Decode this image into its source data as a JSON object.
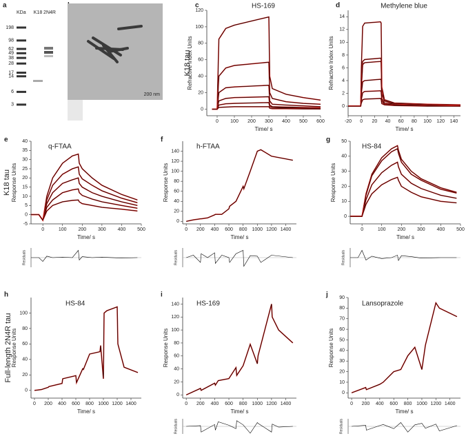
{
  "gel": {
    "panel": "a",
    "header": "KDa",
    "lanes": [
      "K18",
      "2N4R"
    ],
    "markers": [
      198,
      98,
      62,
      49,
      38,
      28,
      17,
      14,
      6,
      3
    ]
  },
  "micrograph": {
    "panel": "b",
    "scale_bar": "200 nm"
  },
  "chart_data": [
    {
      "type": "line",
      "panel": "c",
      "row_label": "K18 tau",
      "title": "HS-169",
      "ylabel": "Refractive Index Units",
      "xlabel": "Time/ s",
      "fit_color": "#e0201b",
      "xlim": [
        -60,
        600
      ],
      "xticks": [
        0,
        100,
        200,
        300,
        400,
        500,
        600
      ],
      "ylim": [
        -8,
        120
      ],
      "yticks": [
        0,
        20,
        40,
        60,
        80,
        100,
        120
      ],
      "x": [
        -30,
        0,
        10,
        50,
        100,
        200,
        300,
        305,
        320,
        400,
        500,
        600
      ],
      "series": [
        {
          "color": "#000000",
          "values": [
            0,
            0,
            85,
            98,
            102,
            107,
            112,
            40,
            25,
            18,
            14,
            11
          ]
        },
        {
          "color": "#000000",
          "values": [
            0,
            0,
            40,
            50,
            53,
            55,
            57,
            20,
            13,
            9,
            7,
            6
          ]
        },
        {
          "color": "#000000",
          "values": [
            0,
            0,
            20,
            26,
            27,
            28,
            29,
            10,
            6,
            5,
            4,
            3
          ]
        },
        {
          "color": "#000000",
          "values": [
            0,
            0,
            10,
            13,
            14,
            14.5,
            15,
            5,
            3,
            2.5,
            2,
            1.5
          ]
        },
        {
          "color": "#000000",
          "values": [
            0,
            0,
            5,
            6.5,
            7,
            7.5,
            8,
            3,
            2,
            1.5,
            1,
            1
          ]
        },
        {
          "color": "#000000",
          "values": [
            0,
            0,
            2,
            2.5,
            3,
            3,
            3,
            1,
            0.5,
            0.5,
            0.3,
            0.2
          ]
        }
      ]
    },
    {
      "type": "line",
      "panel": "d",
      "title": "Methylene blue",
      "ylabel": "Refractive Index Units",
      "xlabel": "Time/ s",
      "fit_color": "#e0201b",
      "xlim": [
        -20,
        150
      ],
      "xticks": [
        -20,
        0,
        20,
        40,
        60,
        80,
        100,
        120,
        140
      ],
      "ylim": [
        -1.5,
        15
      ],
      "yticks": [
        0,
        2,
        4,
        6,
        8,
        10,
        12,
        14
      ],
      "x": [
        -20,
        -1,
        0,
        2,
        5,
        29,
        30,
        31,
        35,
        50,
        100,
        150
      ],
      "series": [
        {
          "color": "#000000",
          "values": [
            0,
            0,
            6,
            12.5,
            13,
            13.2,
            13,
            3,
            1,
            0.5,
            0.3,
            0.2
          ]
        },
        {
          "color": "#000000",
          "values": [
            0,
            0,
            3,
            7,
            7.3,
            7.5,
            7.4,
            2,
            0.8,
            0.4,
            0.2,
            0.1
          ]
        },
        {
          "color": "#000000",
          "values": [
            0,
            0,
            3,
            6.5,
            6.8,
            7,
            6.9,
            2,
            0.8,
            0.4,
            0.2,
            0.1
          ]
        },
        {
          "color": "#000000",
          "values": [
            0,
            0,
            2,
            3.8,
            4,
            4.2,
            4.1,
            1.2,
            0.5,
            0.3,
            0.1,
            0.1
          ]
        },
        {
          "color": "#000000",
          "values": [
            0,
            0,
            1,
            2.1,
            2.3,
            2.4,
            2.3,
            0.8,
            0.3,
            0.2,
            0.1,
            0
          ]
        },
        {
          "color": "#000000",
          "values": [
            0,
            0,
            0.5,
            1,
            1.1,
            1.2,
            1.1,
            0.4,
            0.2,
            0.1,
            0,
            0
          ]
        }
      ]
    },
    {
      "type": "line",
      "panel": "e",
      "row_label": "K18 tau",
      "title": "q-FTAA",
      "ylabel": "Response Units",
      "xlabel": "Time/ s",
      "fit_color": "#e0201b",
      "xlim": [
        -60,
        500
      ],
      "xticks": [
        0,
        100,
        200,
        300,
        400,
        500
      ],
      "ylim": [
        -5,
        40
      ],
      "yticks": [
        -5,
        0,
        5,
        10,
        15,
        20,
        25,
        30,
        35,
        40
      ],
      "x": [
        -60,
        -20,
        0,
        20,
        50,
        100,
        150,
        180,
        185,
        200,
        250,
        300,
        400,
        480
      ],
      "series": [
        {
          "color": "#000000",
          "values": [
            0,
            0,
            -3,
            10,
            20,
            28,
            32,
            33,
            28,
            25,
            20,
            16,
            11,
            8
          ]
        },
        {
          "color": "#000000",
          "values": [
            0,
            0,
            -3,
            8,
            16,
            22,
            25,
            26,
            22,
            19.5,
            16,
            13,
            9,
            6.5
          ]
        },
        {
          "color": "#000000",
          "values": [
            0,
            0,
            -3,
            6,
            12,
            17,
            19,
            20,
            17,
            15,
            12,
            10,
            7,
            5
          ]
        },
        {
          "color": "#000000",
          "values": [
            0,
            0,
            -3,
            4,
            8,
            12,
            13.5,
            14,
            12,
            10.5,
            8.5,
            7,
            5,
            3.5
          ]
        },
        {
          "color": "#000000",
          "values": [
            0,
            0,
            -3,
            2,
            5,
            7,
            7.8,
            8,
            7,
            6,
            5,
            4,
            3,
            2
          ]
        }
      ],
      "residuals": {
        "ylabel": "Residuals",
        "ylim": [
          -2,
          2
        ],
        "values": [
          0,
          0,
          -0.8,
          0.3,
          0,
          0.1,
          0,
          1.5,
          -0.5,
          0.2,
          0,
          0.1,
          -0.1,
          0
        ]
      }
    },
    {
      "type": "line",
      "panel": "f",
      "title": "h-FTAA",
      "ylabel": "Response Units",
      "xlabel": "Time/ s",
      "fit_color": "#e0201b",
      "xlim": [
        -50,
        1550
      ],
      "xticks": [
        0,
        200,
        400,
        600,
        800,
        1000,
        1200,
        1400
      ],
      "ylim": [
        -5,
        160
      ],
      "yticks": [
        0,
        20,
        40,
        60,
        80,
        100,
        120,
        140
      ],
      "x": [
        0,
        100,
        200,
        210,
        300,
        400,
        410,
        500,
        600,
        610,
        700,
        800,
        810,
        900,
        1000,
        1050,
        1200,
        1500
      ],
      "series": [
        {
          "color": "#000000",
          "values": [
            0,
            3,
            5,
            5,
            7,
            13,
            14,
            14,
            25,
            30,
            40,
            70,
            65,
            100,
            140,
            143,
            130,
            122
          ]
        }
      ],
      "residuals": {
        "ylabel": "Residuals",
        "ylim": [
          -2,
          2
        ],
        "values": [
          0,
          0.5,
          -1,
          0.8,
          0,
          1,
          -1.2,
          0.5,
          0,
          -1,
          0.8,
          1.5,
          -1.8,
          0.4,
          0.3,
          -1,
          0.5,
          0
        ]
      }
    },
    {
      "type": "line",
      "panel": "g",
      "title": "HS-84",
      "ylabel": "Response Units",
      "xlabel": "Time/ s",
      "fit_color": "#e0201b",
      "xlim": [
        -60,
        500
      ],
      "xticks": [
        0,
        100,
        200,
        300,
        400,
        500
      ],
      "ylim": [
        -5,
        50
      ],
      "yticks": [
        0,
        10,
        20,
        30,
        40,
        50
      ],
      "x": [
        -60,
        -20,
        0,
        20,
        50,
        100,
        150,
        180,
        185,
        200,
        250,
        300,
        400,
        480
      ],
      "series": [
        {
          "color": "#000000",
          "values": [
            0,
            0,
            0,
            15,
            28,
            39,
            45,
            47,
            44,
            38,
            30,
            25,
            19,
            16
          ]
        },
        {
          "color": "#000000",
          "values": [
            0,
            0,
            0,
            14,
            27,
            37,
            43,
            45,
            42,
            36,
            28,
            24,
            18,
            15.5
          ]
        },
        {
          "color": "#000000",
          "values": [
            0,
            0,
            0,
            11,
            21,
            29,
            34,
            36,
            33,
            28,
            22,
            18.5,
            14,
            12
          ]
        },
        {
          "color": "#000000",
          "values": [
            0,
            0,
            0,
            8,
            15,
            21,
            24.5,
            26,
            24,
            20,
            16,
            13,
            10,
            9
          ]
        }
      ],
      "residuals": {
        "ylabel": "Residuals",
        "ylim": [
          -2,
          2
        ],
        "values": [
          0,
          0,
          1.5,
          -0.5,
          0.3,
          -0.2,
          0,
          0.5,
          -0.6,
          0.4,
          0.2,
          -0.1,
          0,
          0
        ]
      }
    },
    {
      "type": "line",
      "panel": "h",
      "row_label": "Full-length 2N4R  tau",
      "title": "HS-84",
      "ylabel": "Response Units",
      "xlabel": "Time/ s",
      "fit_color": "#e0201b",
      "xlim": [
        -50,
        1550
      ],
      "xticks": [
        0,
        200,
        400,
        600,
        800,
        1000,
        1200,
        1400
      ],
      "ylim": [
        -10,
        120
      ],
      "yticks": [
        0,
        20,
        40,
        60,
        80,
        100
      ],
      "x": [
        0,
        100,
        200,
        210,
        400,
        410,
        600,
        610,
        700,
        710,
        800,
        950,
        960,
        1000,
        1010,
        1050,
        1200,
        1210,
        1300,
        1500
      ],
      "series": [
        {
          "color": "#000000",
          "values": [
            0,
            1,
            4,
            5,
            9,
            15,
            19,
            10,
            28,
            27,
            47,
            50,
            58,
            15,
            100,
            103,
            108,
            60,
            30,
            23
          ]
        }
      ]
    },
    {
      "type": "line",
      "panel": "i",
      "title": "HS-169",
      "ylabel": "Response Units",
      "xlabel": "Time/ s",
      "fit_color": "#e0201b",
      "xlim": [
        -50,
        1550
      ],
      "xticks": [
        0,
        200,
        400,
        600,
        800,
        1000,
        1200,
        1400
      ],
      "ylim": [
        -5,
        150
      ],
      "yticks": [
        0,
        20,
        40,
        60,
        80,
        100,
        120,
        140
      ],
      "x": [
        0,
        200,
        210,
        400,
        410,
        450,
        600,
        700,
        710,
        800,
        900,
        1000,
        1010,
        1200,
        1210,
        1300,
        1500
      ],
      "series": [
        {
          "color": "#000000",
          "values": [
            0,
            10,
            7,
            18,
            15,
            22,
            25,
            42,
            30,
            45,
            78,
            48,
            60,
            140,
            120,
            100,
            80
          ]
        }
      ],
      "residuals": {
        "ylabel": "Residuals",
        "ylim": [
          -2,
          2
        ],
        "values": [
          0,
          0.2,
          -1.5,
          0.5,
          -1,
          1.2,
          0.3,
          -0.6,
          1.5,
          0.4,
          -1.8,
          1,
          0.8,
          -1.5,
          0.6,
          -0.2,
          0
        ]
      }
    },
    {
      "type": "line",
      "panel": "j",
      "title": "Lansoprazole",
      "ylabel": "Response Units",
      "xlabel": "Time/ s",
      "fit_color": "#e0201b",
      "xlim": [
        -50,
        1550
      ],
      "xticks": [
        0,
        200,
        400,
        600,
        800,
        1000,
        1200,
        1400
      ],
      "ylim": [
        -5,
        90
      ],
      "yticks": [
        0,
        10,
        20,
        30,
        40,
        50,
        60,
        70,
        80,
        90
      ],
      "x": [
        0,
        200,
        210,
        400,
        450,
        600,
        700,
        800,
        900,
        1000,
        1050,
        1200,
        1250,
        1500
      ],
      "series": [
        {
          "color": "#000000",
          "values": [
            0,
            5,
            3,
            8,
            10,
            20,
            22,
            35,
            43,
            22,
            45,
            85,
            80,
            72
          ]
        }
      ],
      "residuals": {
        "ylabel": "Residuals",
        "ylim": [
          -2,
          2
        ],
        "values": [
          0,
          0.3,
          -1,
          0.2,
          0.5,
          -0.6,
          1,
          -1.5,
          0.4,
          0.8,
          -0.5,
          0.6,
          -1.2,
          0.2
        ]
      }
    }
  ]
}
